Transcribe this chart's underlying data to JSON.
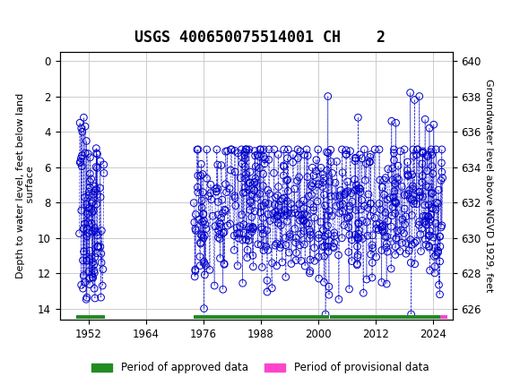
{
  "title": "USGS 400650075514001 CH    2",
  "ylabel_left": "Depth to water level, feet below land\n surface",
  "ylabel_right": "Groundwater level above NGVD 1929, feet",
  "ylim_left": [
    14.6,
    -0.5
  ],
  "ylim_right": [
    625.4,
    640.5
  ],
  "xlim": [
    1946,
    2028
  ],
  "xticks": [
    1952,
    1964,
    1976,
    1988,
    2000,
    2012,
    2024
  ],
  "yticks_left": [
    0,
    2,
    4,
    6,
    8,
    10,
    12,
    14
  ],
  "yticks_right": [
    640,
    638,
    636,
    634,
    632,
    630,
    628,
    626
  ],
  "header_color": "#1b6b3a",
  "data_color": "#0000cc",
  "approved_color": "#228B22",
  "provisional_color": "#ff44cc",
  "background_color": "#ffffff",
  "grid_color": "#cccccc",
  "title_fontsize": 12,
  "axis_label_fontsize": 8,
  "tick_fontsize": 8.5,
  "legend_fontsize": 8.5,
  "approved_bar_ranges": [
    [
      1949.5,
      1955.5
    ],
    [
      1974.0,
      2002.3
    ],
    [
      2002.5,
      2025.5
    ]
  ],
  "provisional_bar_ranges": [
    [
      2025.5,
      2027.0
    ]
  ],
  "bar_y": 14.45,
  "bar_height": 0.22
}
